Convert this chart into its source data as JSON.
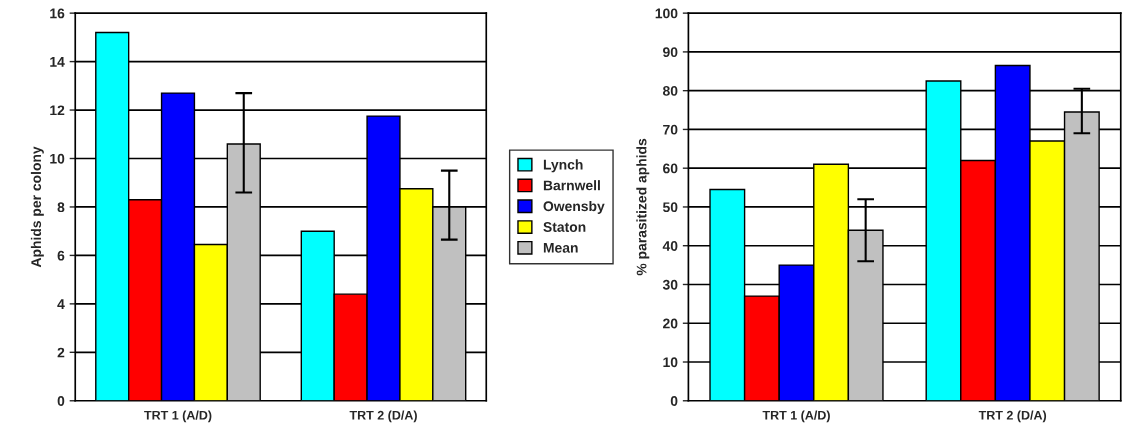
{
  "chart_data": [
    {
      "type": "bar",
      "ylabel": "Aphids per colony",
      "categories": [
        "TRT 1 (A/D)",
        "TRT 2 (D/A)"
      ],
      "ylim": [
        0,
        16
      ],
      "yticks": [
        0,
        2,
        4,
        6,
        8,
        10,
        12,
        14,
        16
      ],
      "grid": "y",
      "legend": "right",
      "series": [
        {
          "name": "Lynch",
          "color": "#00ffff",
          "values": [
            15.2,
            7.0
          ]
        },
        {
          "name": "Barnwell",
          "color": "#ff0000",
          "values": [
            8.3,
            4.4
          ]
        },
        {
          "name": "Owensby",
          "color": "#0000ff",
          "values": [
            12.7,
            11.75
          ]
        },
        {
          "name": "Staton",
          "color": "#ffff00",
          "values": [
            6.45,
            8.75
          ]
        },
        {
          "name": "Mean",
          "color": "#c0c0c0",
          "values": [
            10.6,
            8.0
          ],
          "errors": [
            [
              8.6,
              12.7
            ],
            [
              6.65,
              9.5
            ]
          ]
        }
      ]
    },
    {
      "type": "bar",
      "ylabel": "% parasitized aphids",
      "categories": [
        "TRT 1 (A/D)",
        "TRT 2 (D/A)"
      ],
      "ylim": [
        0,
        100
      ],
      "yticks": [
        0,
        10,
        20,
        30,
        40,
        50,
        60,
        70,
        80,
        90,
        100
      ],
      "grid": "y",
      "series": [
        {
          "color": "#00ffff",
          "values": [
            54.5,
            82.5
          ]
        },
        {
          "color": "#ff0000",
          "values": [
            27,
            62
          ]
        },
        {
          "color": "#0000ff",
          "values": [
            35,
            86.5
          ]
        },
        {
          "color": "#ffff00",
          "values": [
            61,
            67
          ]
        },
        {
          "color": "#c0c0c0",
          "values": [
            44,
            74.5
          ],
          "errors": [
            [
              36,
              52
            ],
            [
              69,
              80.5
            ]
          ]
        }
      ]
    }
  ]
}
